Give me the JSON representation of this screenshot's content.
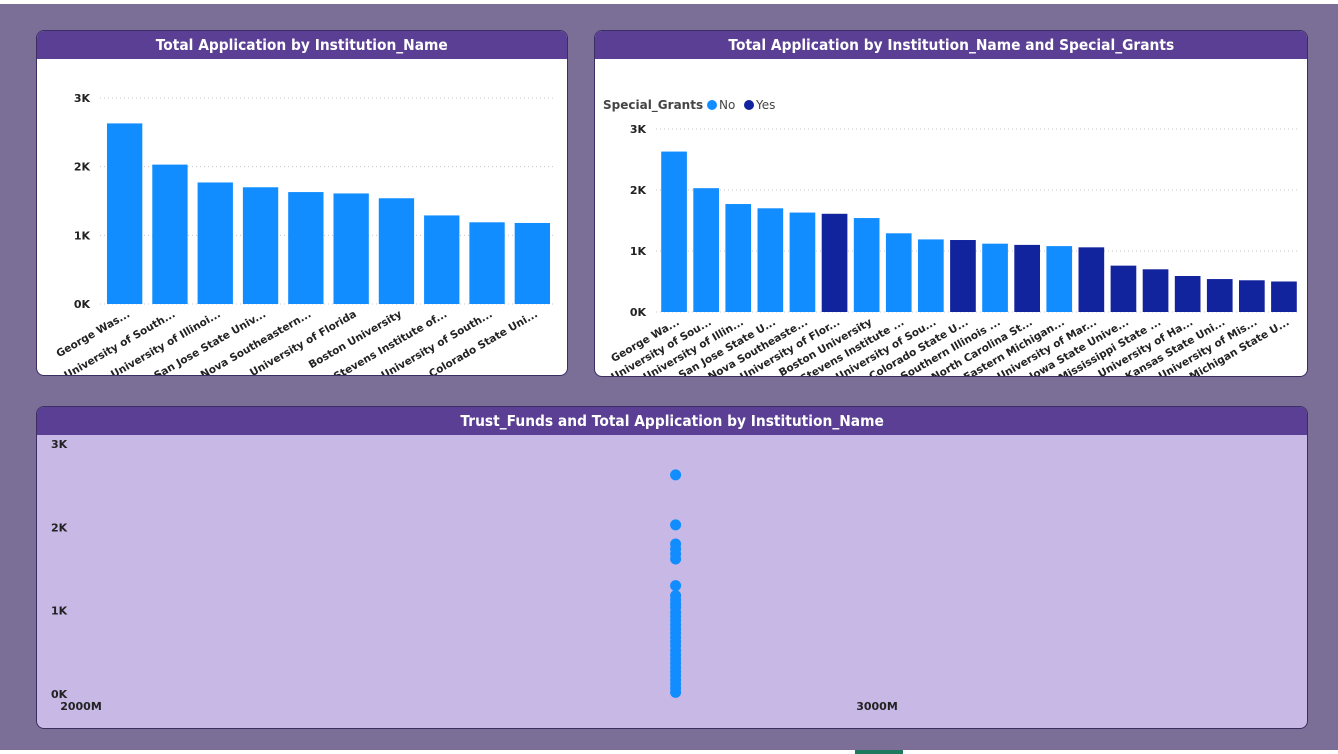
{
  "colors": {
    "background": "#7b6f98",
    "title_bar": "#5a3f94",
    "bar_no": "#118dff",
    "bar_yes": "#12239e",
    "scatter_bg": "#c7b8e6",
    "scatter_point": "#118dff"
  },
  "chart_data": [
    {
      "type": "bar",
      "title": "Total Application by Institution_Name",
      "categories": [
        "George Was...",
        "University of South...",
        "University of Illinoi...",
        "San Jose State Univ...",
        "Nova Southeastern...",
        "University of Florida",
        "Boston University",
        "Stevens Institute of...",
        "University of South...",
        "Colorado State Uni..."
      ],
      "values": [
        2630,
        2030,
        1770,
        1700,
        1630,
        1610,
        1540,
        1290,
        1190,
        1180
      ],
      "y_ticks": [
        "0K",
        "1K",
        "2K",
        "3K"
      ],
      "ylim": [
        0,
        3000
      ],
      "grid": true
    },
    {
      "type": "bar",
      "title": "Total Application by Institution_Name and Special_Grants",
      "legend": {
        "title": "Special_Grants",
        "items": [
          "No",
          "Yes"
        ],
        "position": "top-left"
      },
      "categories": [
        "George Wa...",
        "University of Sou...",
        "University of Illin...",
        "San Jose State U...",
        "Nova Southeaste...",
        "University of Flor...",
        "Boston University",
        "Stevens Institute ...",
        "University of Sou...",
        "Colorado State U...",
        "Southern Illinois ...",
        "North Carolina St...",
        "Eastern Michigan...",
        "University of Mar...",
        "Iowa State Unive...",
        "Mississippi State ...",
        "University of Ha...",
        "Kansas State Uni...",
        "University of Mis...",
        "Michigan State U..."
      ],
      "values": [
        2630,
        2030,
        1770,
        1700,
        1630,
        1610,
        1540,
        1290,
        1190,
        1180,
        1120,
        1100,
        1080,
        1060,
        760,
        700,
        590,
        540,
        520,
        500
      ],
      "special_grants": [
        "No",
        "No",
        "No",
        "No",
        "No",
        "Yes",
        "No",
        "No",
        "No",
        "Yes",
        "No",
        "Yes",
        "No",
        "Yes",
        "Yes",
        "Yes",
        "Yes",
        "Yes",
        "Yes",
        "Yes"
      ],
      "y_ticks": [
        "0K",
        "1K",
        "2K",
        "3K"
      ],
      "ylim": [
        0,
        3000
      ],
      "grid": true
    },
    {
      "type": "scatter",
      "title": "Trust_Funds and Total Application by Institution_Name",
      "x_ticks": [
        "2000M",
        "3000M"
      ],
      "y_ticks": [
        "0K",
        "1K",
        "2K",
        "3K"
      ],
      "xlim": [
        2000,
        3000
      ],
      "ylim": [
        0,
        3000
      ],
      "x": 2747,
      "y_values": [
        2630,
        2030,
        1800,
        1740,
        1680,
        1620,
        1300,
        1180,
        1130,
        1080,
        1040,
        980,
        930,
        880,
        830,
        780,
        730,
        680,
        630,
        580,
        520,
        470,
        420,
        370,
        320,
        270,
        220,
        170,
        120,
        70,
        20
      ]
    }
  ]
}
